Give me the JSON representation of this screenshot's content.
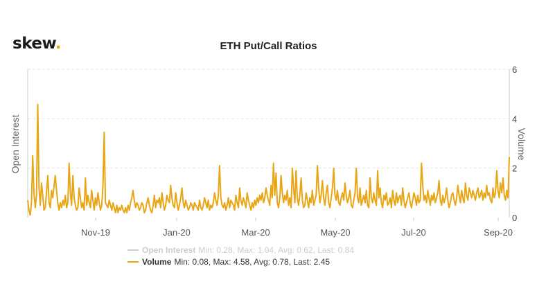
{
  "brand": {
    "logo_text": "skew",
    "logo_dot": "."
  },
  "chart_data": {
    "type": "line",
    "title": "ETH Put/Call Ratios",
    "ylabel_left": "Open Interest",
    "ylabel_right": "Volume",
    "right_axis": {
      "ylim": [
        0,
        6
      ],
      "ticks": [
        "0",
        "2",
        "4",
        "6"
      ]
    },
    "x_ticks": [
      "Nov-19",
      "Jan-20",
      "Mar-20",
      "May-20",
      "Jul-20",
      "Sep-20"
    ],
    "grid": true,
    "colors": {
      "volume": "#e8a614",
      "open_interest": "#cccccc"
    },
    "series": [
      {
        "name": "Open Interest",
        "visible": false,
        "legend_text": "Min: 0.28, Max: 1.04, Avg: 0.62, Last: 0.84"
      },
      {
        "name": "Volume",
        "visible": true,
        "legend_text": "Min: 0.08, Max: 4.58, Avg: 0.78, Last: 2.45",
        "values": [
          0.7,
          0.3,
          0.1,
          0.6,
          2.5,
          1.0,
          0.4,
          0.9,
          4.58,
          1.2,
          0.5,
          1.4,
          0.9,
          0.3,
          0.4,
          1.0,
          1.7,
          0.6,
          0.4,
          1.1,
          0.8,
          1.3,
          1.7,
          1.1,
          0.6,
          0.3,
          0.6,
          0.4,
          0.7,
          0.5,
          0.9,
          0.4,
          0.6,
          2.2,
          1.0,
          0.5,
          1.7,
          0.8,
          0.5,
          0.3,
          0.4,
          1.2,
          0.8,
          0.4,
          0.6,
          0.3,
          1.6,
          0.5,
          0.9,
          0.6,
          0.4,
          1.1,
          0.7,
          0.3,
          0.8,
          0.5,
          1.0,
          0.6,
          0.3,
          0.5,
          1.3,
          3.45,
          0.6,
          0.5,
          0.4,
          0.7,
          0.5,
          0.3,
          0.6,
          0.4,
          0.2,
          0.5,
          0.2,
          0.4,
          0.3,
          0.5,
          0.3,
          0.2,
          0.4,
          0.2,
          0.5,
          0.3,
          0.6,
          0.8,
          1.1,
          0.7,
          0.4,
          0.6,
          0.5,
          0.3,
          0.4,
          0.6,
          0.5,
          0.2,
          0.3,
          0.6,
          0.8,
          0.5,
          0.3,
          0.2,
          0.5,
          0.9,
          0.4,
          0.7,
          0.6,
          0.8,
          0.4,
          1.0,
          0.6,
          0.3,
          0.5,
          0.9,
          0.7,
          0.6,
          1.3,
          0.8,
          0.5,
          0.4,
          1.0,
          0.6,
          0.3,
          0.5,
          0.8,
          1.2,
          0.6,
          0.4,
          0.7,
          0.5,
          0.3,
          0.4,
          0.6,
          0.5,
          0.3,
          0.6,
          0.5,
          0.4,
          0.3,
          0.7,
          0.4,
          0.3,
          0.5,
          0.8,
          0.6,
          0.4,
          0.7,
          0.3,
          0.5,
          0.4,
          0.6,
          1.0,
          0.7,
          0.5,
          0.9,
          2.1,
          0.8,
          0.5,
          0.4,
          0.6,
          0.3,
          0.5,
          0.8,
          0.4,
          0.7,
          0.6,
          0.5,
          0.3,
          0.9,
          0.6,
          0.4,
          1.2,
          0.7,
          0.5,
          0.8,
          0.6,
          0.4,
          1.0,
          0.7,
          0.5,
          0.3,
          0.6,
          0.4,
          0.7,
          0.5,
          0.8,
          0.6,
          0.9,
          0.7,
          1.0,
          0.6,
          0.8,
          1.2,
          0.9,
          0.7,
          0.5,
          1.3,
          0.8,
          2.2,
          0.9,
          1.8,
          0.6,
          0.4,
          0.8,
          1.7,
          1.0,
          0.6,
          0.9,
          0.7,
          1.1,
          0.5,
          0.8,
          0.4,
          2.0,
          1.2,
          0.6,
          1.9,
          0.8,
          0.5,
          0.9,
          1.6,
          0.7,
          0.4,
          0.5,
          1.0,
          0.7,
          0.4,
          0.8,
          0.6,
          1.1,
          0.5,
          0.7,
          0.9,
          2.1,
          1.2,
          0.6,
          0.9,
          1.5,
          0.8,
          0.5,
          1.0,
          1.3,
          0.6,
          0.4,
          0.8,
          1.2,
          2.0,
          0.9,
          0.7,
          1.1,
          0.6,
          0.5,
          0.8,
          1.0,
          0.7,
          1.4,
          0.9,
          0.6,
          0.8,
          1.1,
          0.5,
          0.4,
          0.7,
          1.0,
          2.0,
          0.8,
          0.6,
          1.2,
          0.5,
          0.7,
          0.9,
          0.6,
          1.1,
          0.5,
          0.4,
          1.6,
          0.8,
          0.6,
          1.0,
          0.7,
          0.5,
          1.9,
          0.8,
          1.2,
          0.6,
          0.4,
          0.9,
          0.7,
          1.0,
          0.5,
          0.6,
          0.8,
          0.4,
          1.1,
          0.7,
          0.5,
          1.0,
          0.6,
          0.8,
          0.9,
          0.5,
          1.2,
          0.7,
          0.4,
          0.6,
          0.8,
          1.0,
          0.6,
          0.4,
          0.7,
          1.0,
          0.8,
          0.5,
          0.9,
          0.6,
          0.7,
          2.2,
          1.3,
          0.7,
          0.9,
          0.6,
          1.1,
          0.8,
          0.5,
          0.9,
          0.7,
          1.0,
          0.6,
          0.8,
          1.0,
          1.5,
          0.7,
          0.5,
          0.9,
          0.6,
          0.8,
          1.2,
          0.7,
          0.4,
          0.6,
          0.9,
          1.0,
          0.7,
          0.5,
          0.8,
          1.3,
          0.9,
          0.6,
          1.1,
          0.8,
          0.6,
          1.4,
          0.9,
          0.7,
          1.2,
          1.0,
          0.8,
          1.1,
          0.9,
          0.7,
          1.0,
          1.2,
          0.8,
          0.9,
          1.1,
          0.7,
          1.0,
          0.8,
          1.3,
          0.9,
          1.0,
          0.7,
          0.6,
          1.2,
          0.8,
          1.0,
          1.9,
          1.1,
          0.8,
          1.4,
          1.0,
          1.6,
          0.9,
          0.7,
          1.1,
          0.8,
          2.45
        ]
      }
    ]
  }
}
